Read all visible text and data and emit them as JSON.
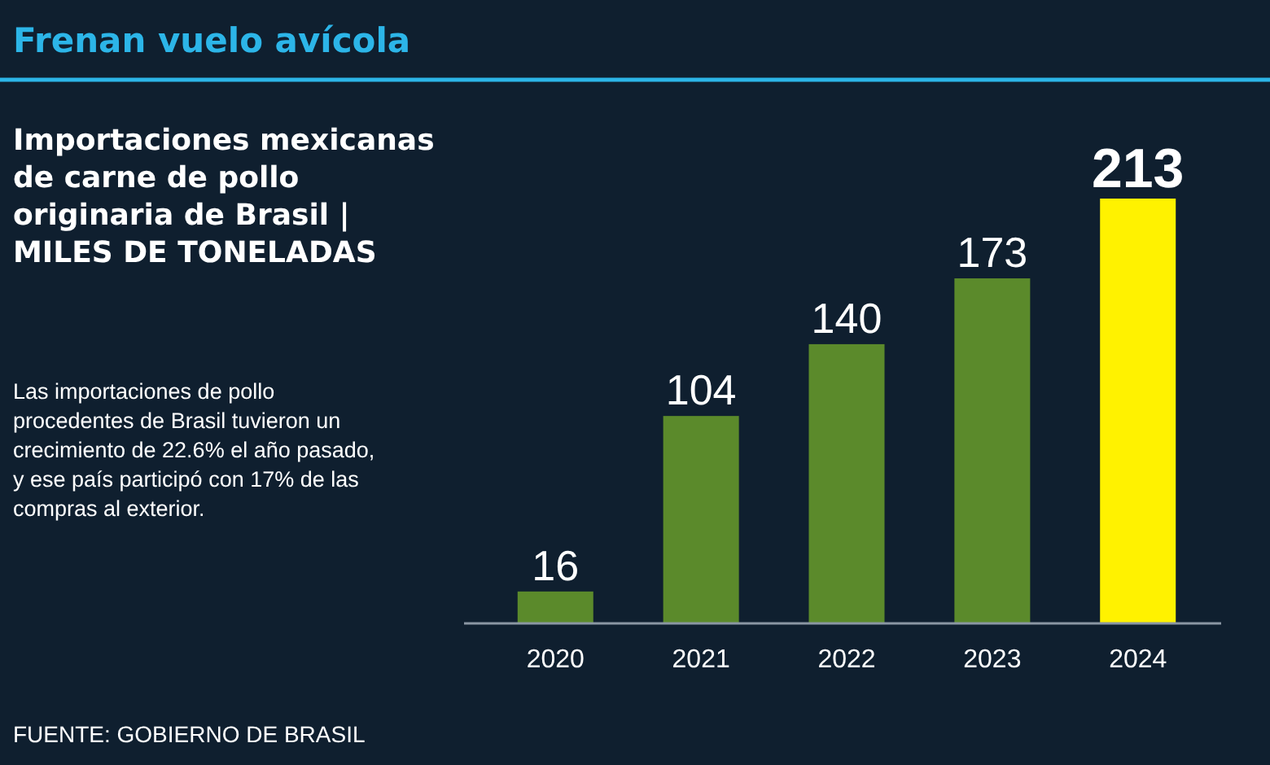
{
  "chart_data": {
    "type": "bar",
    "title": "Frenan vuelo avícola",
    "subtitle": "Importaciones mexicanas de carne de pollo originaria de Brasil | MILES DE TONELADAS",
    "categories": [
      "2020",
      "2021",
      "2022",
      "2023",
      "2024"
    ],
    "values": [
      16,
      104,
      140,
      173,
      213
    ],
    "colors": [
      "#5b8a2b",
      "#5b8a2b",
      "#5b8a2b",
      "#5b8a2b",
      "#fff200"
    ],
    "data_labels": true,
    "annotations": [
      "Las importaciones de pollo procedentes de Brasil tuvieron un crecimiento de 22.6% el año pasado, y ese país participó con 17% de las compras al exterior.",
      "FUENTE: GOBIERNO DE BRASIL"
    ]
  }
}
